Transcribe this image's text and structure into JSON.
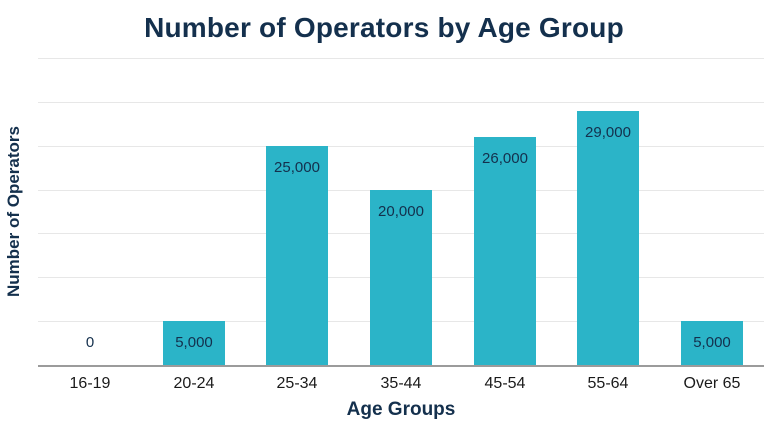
{
  "chart_data": {
    "type": "bar",
    "title": "Number of Operators by Age Group",
    "xlabel": "Age Groups",
    "ylabel": "Number of Operators",
    "categories": [
      "16-19",
      "20-24",
      "25-34",
      "35-44",
      "45-54",
      "55-64",
      "Over 65"
    ],
    "values": [
      0,
      5000,
      25000,
      20000,
      26000,
      29000,
      5000
    ],
    "value_labels": [
      "0",
      "5,000",
      "25,000",
      "20,000",
      "26,000",
      "29,000",
      "5,000"
    ],
    "ylim": [
      0,
      35000
    ],
    "gridline_step": 5000,
    "grid": true,
    "legend": false,
    "y_tick_labels_shown": false
  },
  "colors": {
    "bar": "#2BB4C8",
    "title_text": "#14304D",
    "axis_label_text": "#14304D",
    "value_label_text": "#14304D",
    "tick_label_text": "#1A1A1A",
    "gridline": "#E7E7E7",
    "axis_line": "#9B9B9B",
    "background": "#FFFFFF"
  }
}
